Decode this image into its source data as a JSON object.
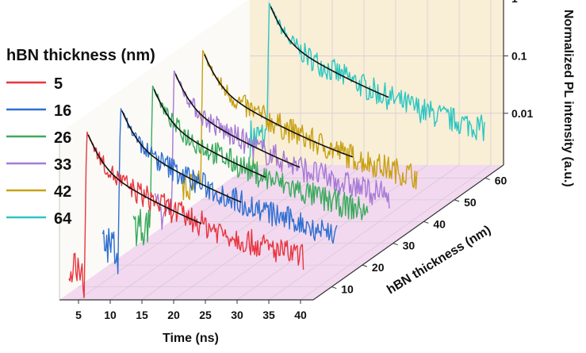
{
  "chart_data": {
    "type": "line",
    "legend": {
      "title": "hBN thickness (nm)",
      "placement": "left"
    },
    "x_axis": {
      "label": "Time (ns)",
      "ticks": [
        "5",
        "10",
        "15",
        "20",
        "25",
        "30",
        "35",
        "40"
      ],
      "range": [
        2,
        42
      ]
    },
    "z_axis": {
      "label": "Normalized PL intensity (a.u.)",
      "scale": "log",
      "ticks": [
        "1",
        "0.1",
        "0.01"
      ]
    },
    "y_axis": {
      "label": "hBN thickness (nm)",
      "ticks": [
        "10",
        "20",
        "30",
        "40",
        "50",
        "60"
      ],
      "range": [
        4,
        66
      ]
    },
    "series": [
      {
        "name": "5",
        "color": "#e8353f",
        "thickness_nm": 5,
        "rise_ns": 5.8,
        "noise_floor": 0.0035,
        "fit_end_ns": 24
      },
      {
        "name": "16",
        "color": "#2f6fd0",
        "thickness_nm": 16,
        "rise_ns": 5.8,
        "noise_floor": 0.0038,
        "fit_end_ns": 25
      },
      {
        "name": "26",
        "color": "#3aaa5c",
        "thickness_nm": 26,
        "rise_ns": 6.0,
        "noise_floor": 0.0036,
        "fit_end_ns": 24
      },
      {
        "name": "33",
        "color": "#a779d6",
        "thickness_nm": 33,
        "rise_ns": 6.0,
        "noise_floor": 0.0034,
        "fit_end_ns": 26
      },
      {
        "name": "42",
        "color": "#c9a012",
        "thickness_nm": 42,
        "rise_ns": 6.2,
        "noise_floor": 0.0038,
        "fit_end_ns": 30
      },
      {
        "name": "64",
        "color": "#2cc6c2",
        "thickness_nm": 64,
        "rise_ns": 6.0,
        "noise_floor": 0.0045,
        "fit_end_ns": 25
      }
    ],
    "fit_color": "#111111",
    "panel_colors": {
      "back_wall": "#f8efd6",
      "floor": "#f2d9ef"
    },
    "grid": true
  }
}
